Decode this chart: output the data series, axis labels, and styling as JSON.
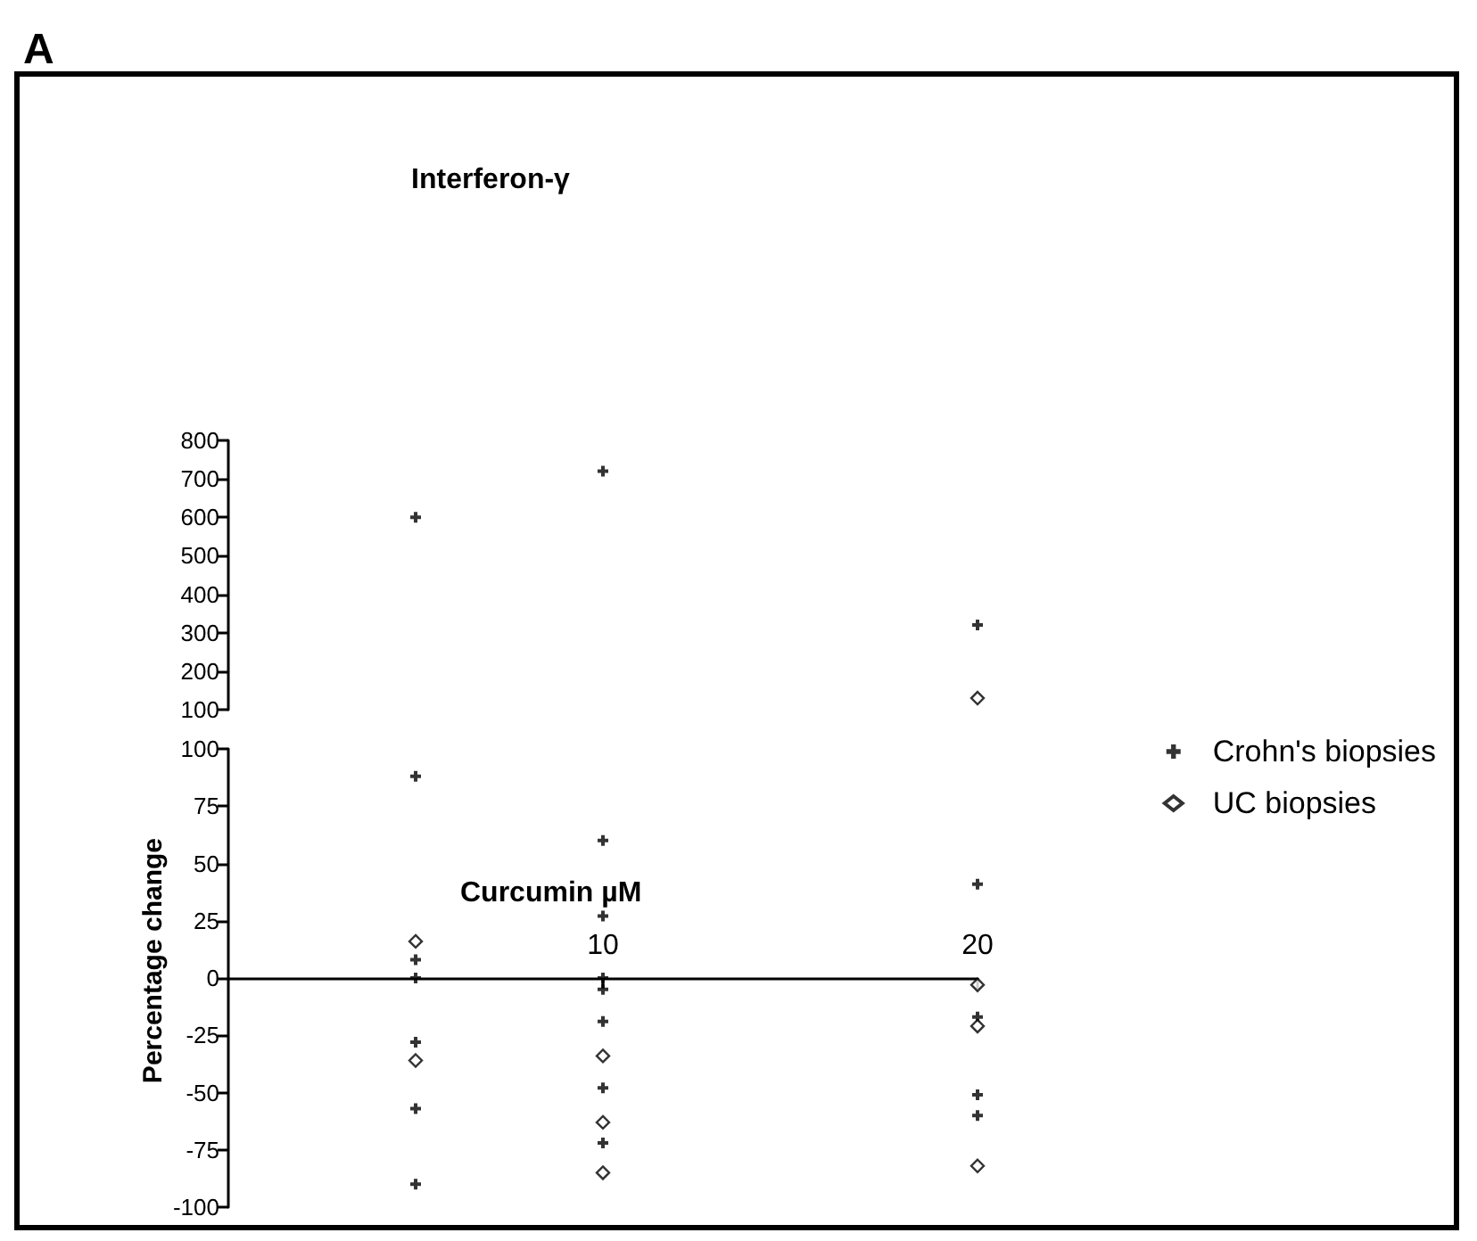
{
  "chart_data": [
    {
      "type": "scatter",
      "title": "Interferon-γ",
      "annotations": [
        "A"
      ],
      "xlim": [
        0,
        20
      ],
      "ylim": [
        100,
        800
      ],
      "yticks": [
        100,
        200,
        300,
        400,
        500,
        600,
        700,
        800
      ],
      "tick_labels": "y",
      "grid": false,
      "legend": false,
      "series": [
        {
          "color": "#000000",
          "marker": "cross",
          "x": [
            5,
            10,
            20
          ],
          "values": [
            600,
            720,
            320
          ]
        },
        {
          "color": "#000000",
          "marker": "diamond",
          "x": [
            20
          ],
          "values": [
            130
          ]
        }
      ]
    },
    {
      "type": "scatter",
      "xlabel": "Curcumin µM",
      "ylabel": "Percentage change",
      "xlim": [
        0,
        20
      ],
      "xticks": [
        10,
        20
      ],
      "ylim": [
        -100,
        100
      ],
      "yticks": [
        -100,
        -75,
        -50,
        -25,
        0,
        25,
        50,
        75,
        100
      ],
      "grid": false,
      "legend": "right",
      "series": [
        {
          "name": "Crohn's biopsies",
          "color": "#000000",
          "marker": "cross",
          "x": [
            5,
            5,
            5,
            5,
            5,
            5,
            10,
            10,
            10,
            10,
            10,
            10,
            10,
            20,
            20,
            20,
            20
          ],
          "values": [
            88,
            8,
            0,
            -28,
            -57,
            -90,
            60,
            27,
            0,
            -5,
            -19,
            -48,
            -72,
            41,
            -17,
            -51,
            -60
          ]
        },
        {
          "name": "UC biopsies",
          "color": "#000000",
          "marker": "diamond",
          "x": [
            5,
            5,
            10,
            10,
            10,
            20,
            20,
            20
          ],
          "values": [
            16,
            -36,
            -34,
            -63,
            -85,
            -3,
            -21,
            -82
          ]
        }
      ]
    }
  ]
}
